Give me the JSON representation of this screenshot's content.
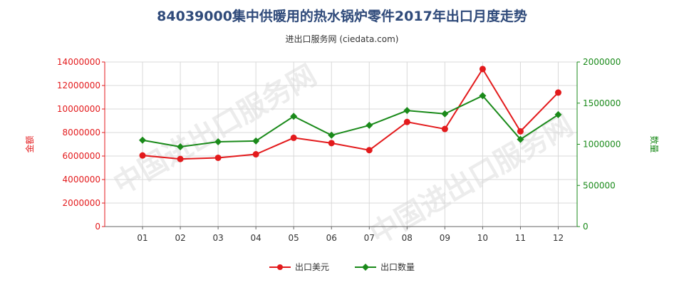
{
  "header": {
    "title": "84039000集中供暖用的热水锅炉零件2017年出口月度走势",
    "subtitle": "进出口服务网 (ciedata.com)"
  },
  "watermark": "中国进出口服务网",
  "colors": {
    "amount": "#e31a1c",
    "quantity": "#1a8a1a",
    "grid": "#d9d9d9",
    "axis_left": "#e31a1c",
    "axis_right": "#1a8a1a"
  },
  "chart_data": {
    "type": "line",
    "categories": [
      "01",
      "02",
      "03",
      "04",
      "05",
      "06",
      "07",
      "08",
      "09",
      "10",
      "11",
      "12"
    ],
    "series": [
      {
        "name": "出口美元",
        "axis": "left",
        "values": [
          6050000,
          5750000,
          5850000,
          6150000,
          7550000,
          7100000,
          6500000,
          8900000,
          8300000,
          13400000,
          8100000,
          11400000
        ]
      },
      {
        "name": "出口数量",
        "axis": "right",
        "values": [
          1050000,
          970000,
          1030000,
          1040000,
          1340000,
          1110000,
          1230000,
          1410000,
          1370000,
          1590000,
          1060000,
          1360000
        ]
      }
    ],
    "y_left": {
      "label": "金额",
      "ylim": [
        0,
        14000000
      ],
      "ticks": [
        "0",
        "2000000",
        "4000000",
        "6000000",
        "8000000",
        "10000000",
        "12000000",
        "14000000"
      ]
    },
    "y_right": {
      "label": "数量",
      "ylim": [
        0,
        2000000
      ],
      "ticks": [
        "0",
        "500000",
        "1000000",
        "1500000",
        "2000000"
      ]
    },
    "grid": true,
    "legend_position": "bottom-center"
  }
}
